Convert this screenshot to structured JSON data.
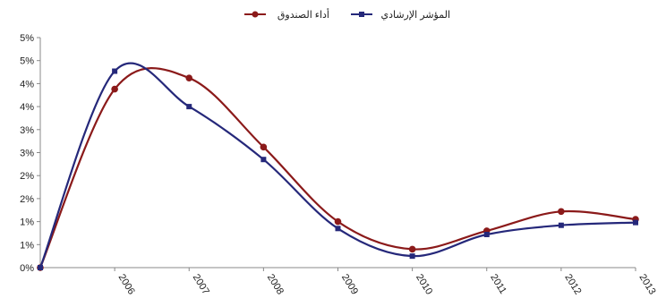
{
  "chart_data": {
    "type": "line",
    "x": [
      "",
      "2006",
      "2007",
      "2008",
      "2009",
      "2010",
      "2011",
      "2012",
      "2013"
    ],
    "y_tick_labels": [
      "0%",
      "1%",
      "1%",
      "2%",
      "2%",
      "3%",
      "3%",
      "4%",
      "4%",
      "5%",
      "5%"
    ],
    "ylim": [
      0,
      5
    ],
    "grid": false,
    "legend_position": "top-center",
    "series": [
      {
        "name": "أداء الصندوق",
        "color": "#8b1a1a",
        "values": [
          0.0,
          3.88,
          4.12,
          2.62,
          1.0,
          0.4,
          0.8,
          1.22,
          1.05
        ]
      },
      {
        "name": "المؤشر الإرشادي",
        "color": "#25287a",
        "values": [
          0.0,
          4.27,
          3.5,
          2.35,
          0.85,
          0.25,
          0.72,
          0.92,
          0.98
        ]
      }
    ]
  }
}
